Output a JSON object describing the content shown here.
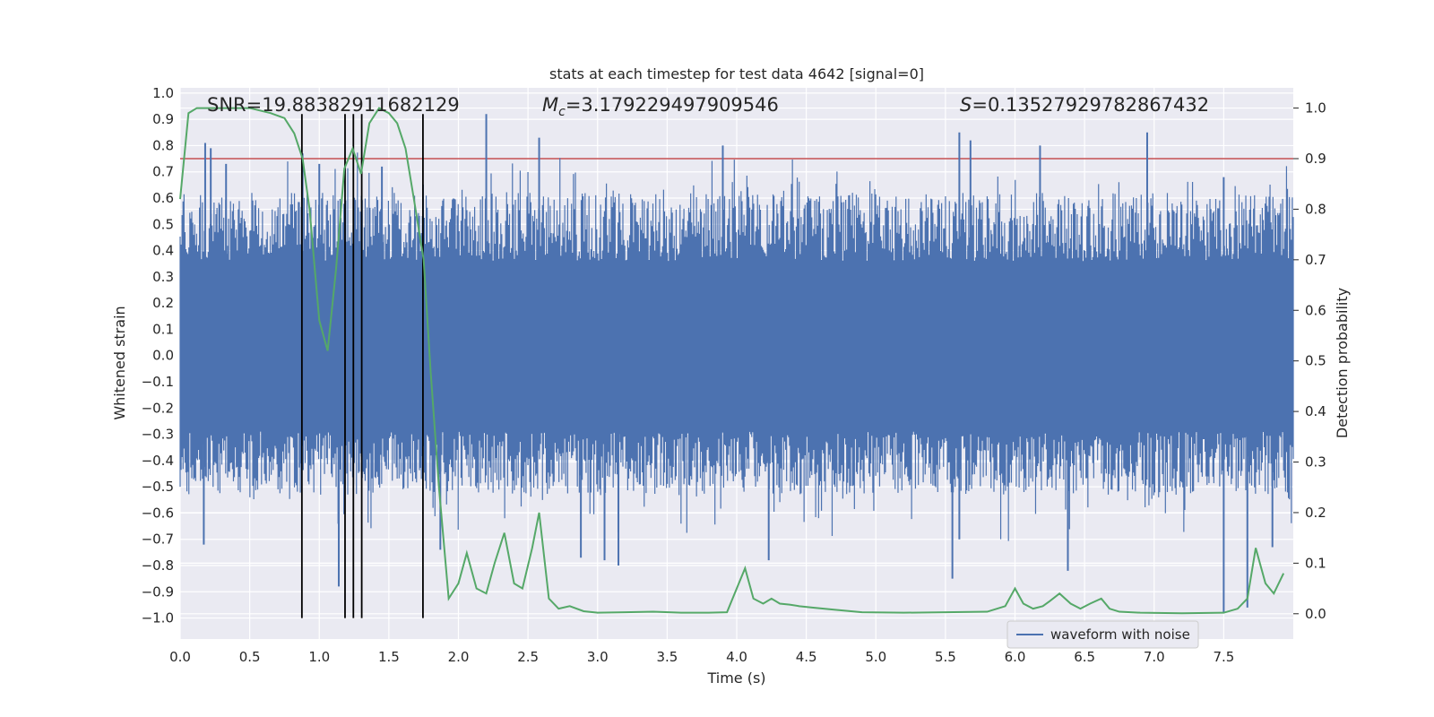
{
  "chart_data": {
    "type": "line",
    "title": "stats at each timestep for test data 4642 [signal=0]",
    "xlabel": "Time (s)",
    "ylabel_left": "Whitened strain",
    "ylabel_right": "Detection probability",
    "xlim": [
      0.0,
      8.0
    ],
    "ylim_left": [
      -1.08,
      1.02
    ],
    "ylim_right": [
      -0.05,
      1.04
    ],
    "x_ticks": [
      0.0,
      0.5,
      1.0,
      1.5,
      2.0,
      2.5,
      3.0,
      3.5,
      4.0,
      4.5,
      5.0,
      5.5,
      6.0,
      6.5,
      7.0,
      7.5
    ],
    "x_tick_labels": [
      "0.0",
      "0.5",
      "1.0",
      "1.5",
      "2.0",
      "2.5",
      "3.0",
      "3.5",
      "4.0",
      "4.5",
      "5.0",
      "5.5",
      "6.0",
      "6.5",
      "7.0",
      "7.5"
    ],
    "y_left_ticks": [
      -1.0,
      -0.9,
      -0.8,
      -0.7,
      -0.6,
      -0.5,
      -0.4,
      -0.3,
      -0.2,
      -0.1,
      0.0,
      0.1,
      0.2,
      0.3,
      0.4,
      0.5,
      0.6,
      0.7,
      0.8,
      0.9,
      1.0
    ],
    "y_left_tick_labels": [
      "−1.0",
      "−0.9",
      "−0.8",
      "−0.7",
      "−0.6",
      "−0.5",
      "−0.4",
      "−0.3",
      "−0.2",
      "−0.1",
      "0.0",
      "0.1",
      "0.2",
      "0.3",
      "0.4",
      "0.5",
      "0.6",
      "0.7",
      "0.8",
      "0.9",
      "1.0"
    ],
    "y_right_ticks": [
      0.0,
      0.1,
      0.2,
      0.3,
      0.4,
      0.5,
      0.6,
      0.7,
      0.8,
      0.9,
      1.0
    ],
    "y_right_tick_labels": [
      "0.0",
      "0.1",
      "0.2",
      "0.3",
      "0.4",
      "0.5",
      "0.6",
      "0.7",
      "0.8",
      "0.9",
      "1.0"
    ],
    "grid": true,
    "legend": {
      "position": "bottom-right",
      "entries": [
        "waveform with noise"
      ]
    },
    "annotations": {
      "snr": "SNR=19.88382911682129",
      "mc_symbol": "M",
      "mc_sub": "c",
      "mc_value": "=3.179229497909546",
      "s_symbol": "S",
      "s_value": "=0.13527929782867432"
    },
    "threshold": {
      "value": 0.9,
      "axis": "right",
      "color": "#c44e52"
    },
    "vertical_markers": {
      "x": [
        0.875,
        1.185,
        1.245,
        1.305,
        1.745
      ],
      "y_range_left": [
        -1.0,
        0.92
      ],
      "color": "#000000"
    },
    "waveform": {
      "name": "waveform with noise",
      "color": "#4c72b0",
      "x_range": [
        0.0,
        8.0
      ],
      "core_band": [
        -0.25,
        0.32
      ],
      "peaks": [
        {
          "x": 0.18,
          "y": 0.81
        },
        {
          "x": 0.22,
          "y": 0.79
        },
        {
          "x": 0.33,
          "y": 0.73
        },
        {
          "x": 0.88,
          "y": 0.77
        },
        {
          "x": 1.0,
          "y": 0.73
        },
        {
          "x": 1.45,
          "y": 0.72
        },
        {
          "x": 2.2,
          "y": 0.92
        },
        {
          "x": 2.58,
          "y": 0.83
        },
        {
          "x": 3.9,
          "y": 0.8
        },
        {
          "x": 5.6,
          "y": 0.85
        },
        {
          "x": 5.68,
          "y": 0.82
        },
        {
          "x": 6.18,
          "y": 0.8
        },
        {
          "x": 6.95,
          "y": 0.85
        },
        {
          "x": 7.5,
          "y": 0.68
        }
      ],
      "troughs": [
        {
          "x": 0.17,
          "y": -0.72
        },
        {
          "x": 1.14,
          "y": -0.88
        },
        {
          "x": 1.87,
          "y": -0.74
        },
        {
          "x": 2.88,
          "y": -0.77
        },
        {
          "x": 3.05,
          "y": -0.78
        },
        {
          "x": 3.15,
          "y": -0.8
        },
        {
          "x": 4.23,
          "y": -0.78
        },
        {
          "x": 5.55,
          "y": -0.85
        },
        {
          "x": 5.6,
          "y": -0.7
        },
        {
          "x": 6.38,
          "y": -0.82
        },
        {
          "x": 7.5,
          "y": -0.98
        },
        {
          "x": 7.67,
          "y": -0.96
        },
        {
          "x": 7.85,
          "y": -0.73
        }
      ]
    },
    "probability": {
      "name": "detection probability",
      "color": "#55a868",
      "x": [
        0.0,
        0.06,
        0.12,
        0.2,
        0.35,
        0.5,
        0.65,
        0.75,
        0.82,
        0.88,
        0.93,
        1.0,
        1.06,
        1.12,
        1.18,
        1.24,
        1.3,
        1.36,
        1.43,
        1.5,
        1.56,
        1.62,
        1.68,
        1.75,
        1.8,
        1.86,
        1.93,
        2.0,
        2.06,
        2.13,
        2.2,
        2.26,
        2.33,
        2.4,
        2.46,
        2.53,
        2.58,
        2.65,
        2.72,
        2.8,
        2.9,
        3.0,
        3.2,
        3.4,
        3.6,
        3.8,
        3.93,
        4.0,
        4.06,
        4.12,
        4.19,
        4.25,
        4.31,
        4.38,
        4.45,
        4.55,
        4.7,
        4.9,
        5.2,
        5.5,
        5.8,
        5.93,
        6.0,
        6.06,
        6.13,
        6.2,
        6.25,
        6.32,
        6.4,
        6.47,
        6.54,
        6.62,
        6.68,
        6.75,
        6.9,
        7.2,
        7.5,
        7.6,
        7.67,
        7.73,
        7.8,
        7.86,
        7.93
      ],
      "y": [
        0.82,
        0.99,
        1.0,
        1.0,
        1.0,
        1.0,
        0.99,
        0.98,
        0.95,
        0.9,
        0.8,
        0.58,
        0.52,
        0.68,
        0.88,
        0.92,
        0.87,
        0.97,
        1.0,
        0.99,
        0.97,
        0.92,
        0.82,
        0.7,
        0.48,
        0.25,
        0.03,
        0.06,
        0.12,
        0.05,
        0.04,
        0.1,
        0.16,
        0.06,
        0.05,
        0.13,
        0.2,
        0.03,
        0.01,
        0.015,
        0.005,
        0.002,
        0.003,
        0.004,
        0.002,
        0.002,
        0.003,
        0.05,
        0.09,
        0.03,
        0.02,
        0.03,
        0.02,
        0.018,
        0.015,
        0.012,
        0.008,
        0.003,
        0.002,
        0.003,
        0.004,
        0.015,
        0.05,
        0.02,
        0.01,
        0.015,
        0.025,
        0.04,
        0.02,
        0.01,
        0.02,
        0.03,
        0.01,
        0.004,
        0.002,
        0.001,
        0.002,
        0.01,
        0.03,
        0.13,
        0.06,
        0.04,
        0.08
      ]
    }
  }
}
